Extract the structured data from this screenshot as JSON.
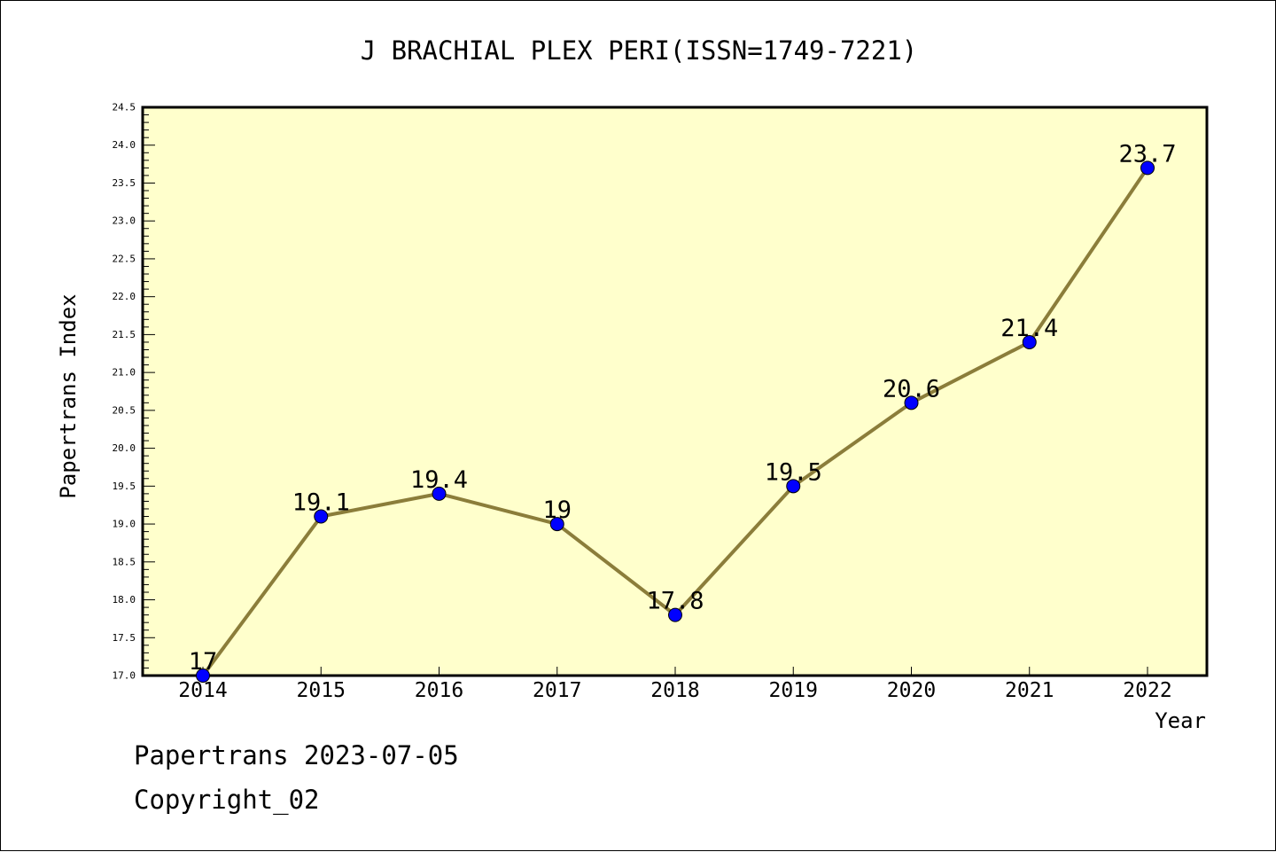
{
  "chart_data": {
    "type": "line",
    "title": "J BRACHIAL PLEX PERI(ISSN=1749-7221)",
    "xlabel": "Year",
    "ylabel": "Papertrans Index",
    "categories": [
      "2014",
      "2015",
      "2016",
      "2017",
      "2018",
      "2019",
      "2020",
      "2021",
      "2022"
    ],
    "values": [
      17,
      19.1,
      19.4,
      19,
      17.8,
      19.5,
      20.6,
      21.4,
      23.7
    ],
    "data_labels": [
      "17",
      "19.1",
      "19.4",
      "19",
      "17.8",
      "19.5",
      "20.6",
      "21.4",
      "23.7"
    ],
    "ylim": [
      17.0,
      24.5
    ],
    "yticks": [
      "17.0",
      "17.5",
      "18.0",
      "18.5",
      "19.0",
      "19.5",
      "20.0",
      "20.5",
      "21.0",
      "21.5",
      "22.0",
      "22.5",
      "23.0",
      "23.5",
      "24.0",
      "24.5"
    ],
    "grid": false,
    "colors": {
      "plot_background": "#ffffcc",
      "line": "#8b7d3a",
      "marker": "#0000ff"
    }
  },
  "footer": {
    "line1": "Papertrans 2023-07-05",
    "line2": "Copyright_02"
  }
}
